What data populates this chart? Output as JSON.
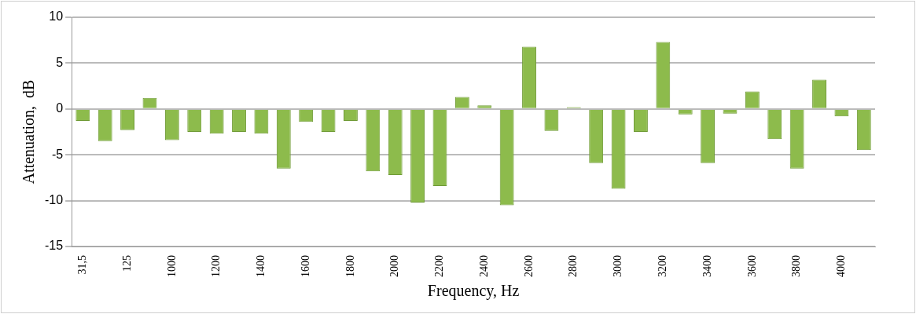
{
  "chart_data": {
    "type": "bar",
    "xlabel": "Frequency, Hz",
    "ylabel": "Attenuation,  dB",
    "categories": [
      "31,5",
      null,
      "125",
      null,
      "1000",
      null,
      "1200",
      null,
      "1400",
      null,
      "1600",
      null,
      "1800",
      null,
      "2000",
      null,
      "2200",
      null,
      "2400",
      null,
      "2600",
      null,
      "2800",
      null,
      "3000",
      null,
      "3200",
      null,
      "3400",
      null,
      "3600",
      null,
      "3800",
      null,
      "4000",
      null
    ],
    "values": [
      -1.3,
      -3.5,
      -2.3,
      1.2,
      -3.4,
      -2.5,
      -2.7,
      -2.5,
      -2.7,
      -6.5,
      -1.4,
      -2.5,
      -1.3,
      -6.8,
      -7.2,
      -10.2,
      -8.4,
      1.3,
      0.4,
      -10.5,
      6.8,
      -2.4,
      0.2,
      -5.9,
      -8.7,
      -2.5,
      7.3,
      -0.6,
      -5.9,
      -0.5,
      1.9,
      -3.3,
      -6.5,
      3.2,
      -0.8,
      -4.5
    ],
    "color": "#8dbb4c",
    "ylim": [
      -15,
      10
    ],
    "yticks": [
      -15,
      -10,
      -5,
      0,
      5,
      10
    ],
    "grid": "y",
    "legend": false
  }
}
